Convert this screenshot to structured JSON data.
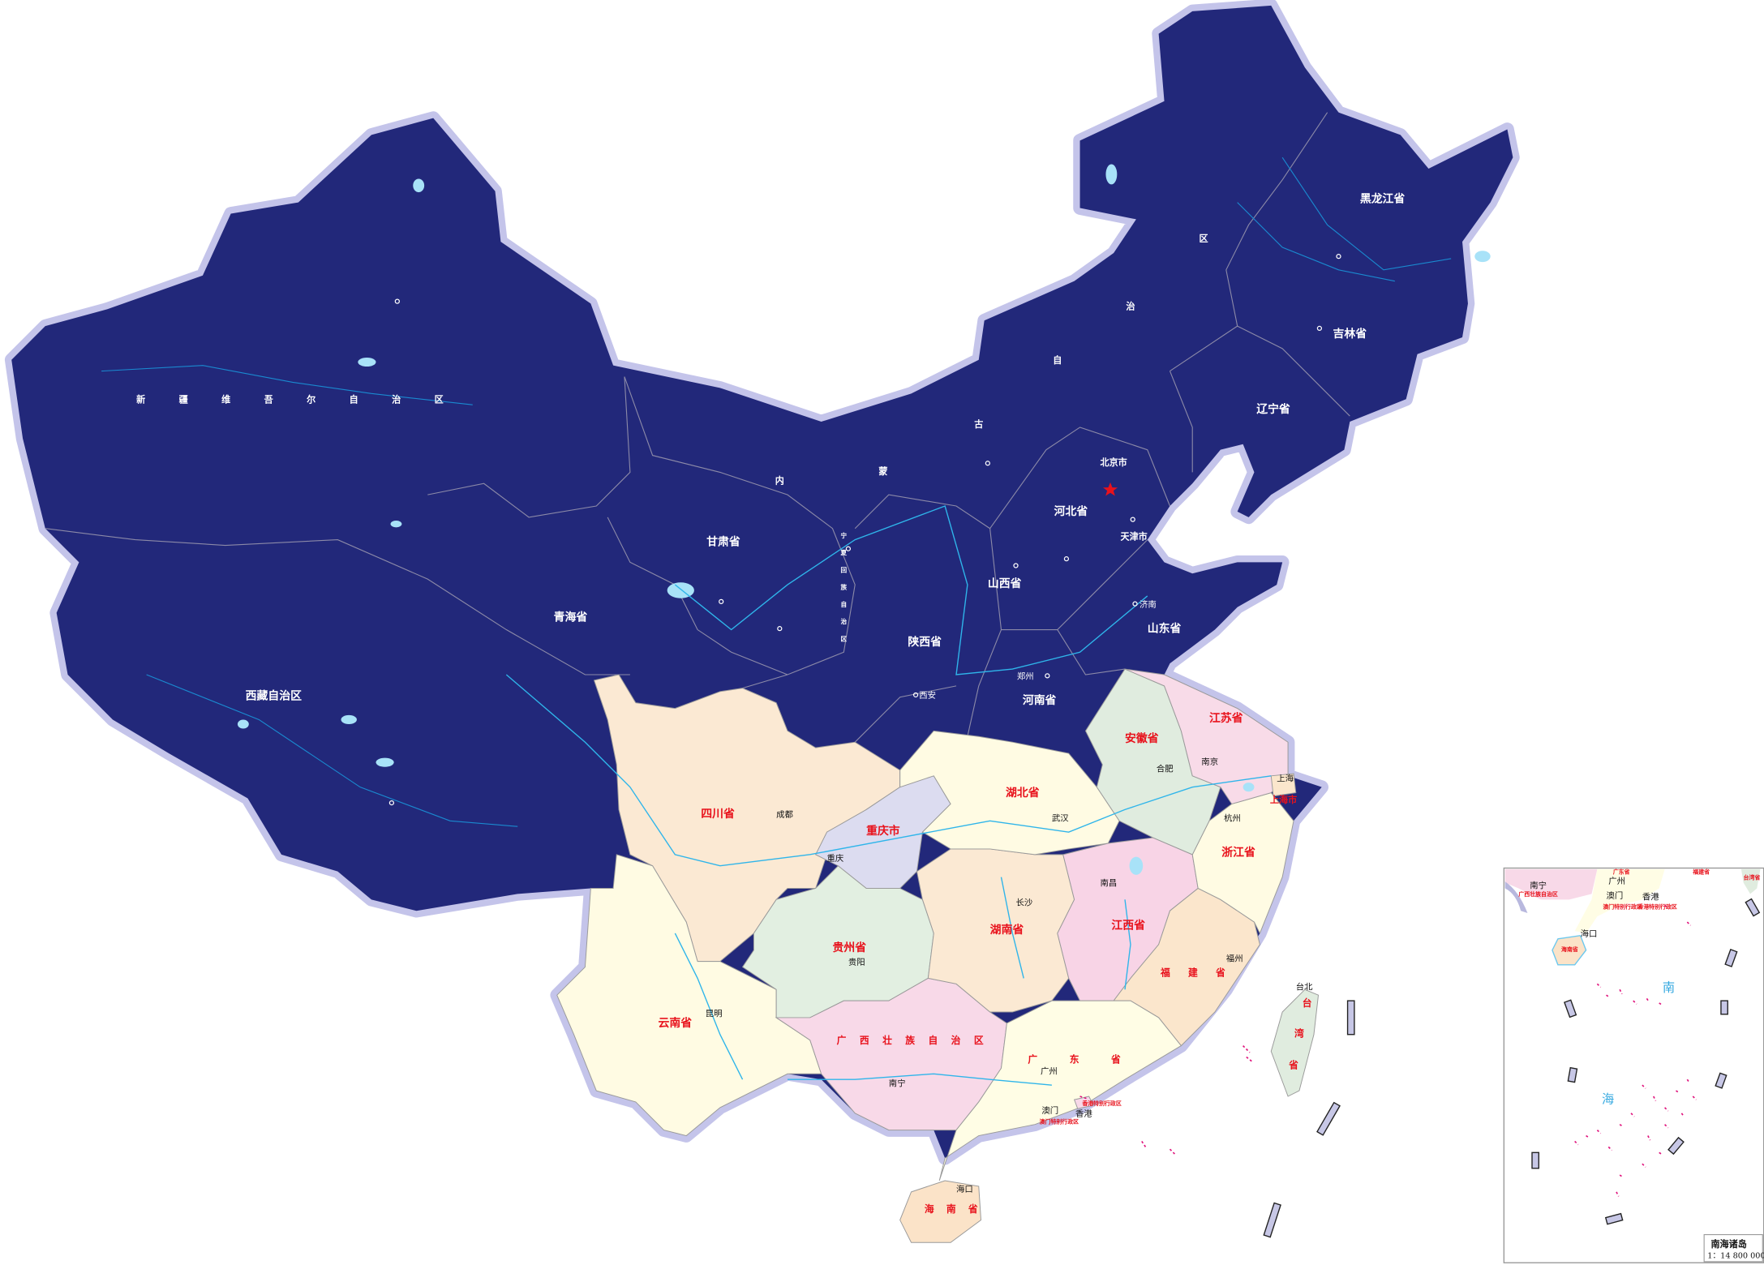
{
  "colors": {
    "north_region": "#22287a",
    "border_halo": "#c4c4ea",
    "label_red": "#e8121c",
    "sea_label": "#35a9e0",
    "river": "#2fb5ea",
    "island_marks": "#e0137c",
    "capital_star": "#e8121c"
  },
  "provinces": {
    "xinjiang": "新疆维吾尔自治区",
    "xizang": "西藏自治区",
    "qinghai": "青海省",
    "gansu": "甘肃省",
    "neimenggu": "内蒙古自治区",
    "ningxia": "宁夏回族自治区",
    "shaanxi": "陕西省",
    "shanxi": "山西省",
    "henan": "河南省",
    "hebei": "河北省",
    "beijing": "北京市",
    "tianjin": "天津市",
    "shandong": "山东省",
    "liaoning": "辽宁省",
    "jilin": "吉林省",
    "heilongjiang": "黑龙江省",
    "sichuan": "四川省",
    "chongqing": "重庆市",
    "hubei": "湖北省",
    "hunan": "湖南省",
    "guizhou": "贵州省",
    "yunnan": "云南省",
    "guangxi": "广西壮族自治区",
    "guangdong": "广东省",
    "jiangxi": "江西省",
    "fujian": "福建省",
    "zhejiang": "浙江省",
    "anhui": "安徽省",
    "jiangsu": "江苏省",
    "shanghai": "上海市",
    "taiwan": "台湾省",
    "hainan": "海南省"
  },
  "cities": {
    "jinan": "济南",
    "zhengzhou": "郑州",
    "xian": "西安",
    "chengdu": "成都",
    "chongqing": "重庆",
    "wuhan": "武汉",
    "changsha": "长沙",
    "guiyang": "贵阳",
    "kunming": "昆明",
    "nanning": "南宁",
    "guangzhou": "广州",
    "nanchang": "南昌",
    "fuzhou": "福州",
    "hangzhou": "杭州",
    "hefei": "合肥",
    "nanjing": "南京",
    "shanghai": "上海",
    "taibei": "台北",
    "haikou": "海口",
    "aomen": "澳门",
    "xianggang": "香港"
  },
  "sar": {
    "aomen": "澳门特别行政区",
    "xianggang": "香港特别行政区"
  },
  "inset": {
    "title": "南海诸岛",
    "scale": "1：14 800 000",
    "sea_char_1": "南",
    "sea_char_2": "海",
    "nanning": "南宁",
    "guangxi": "广西壮族自治区",
    "guangzhou": "广州",
    "guangdong": "广东省",
    "aomen": "澳门",
    "xianggang": "香港",
    "aomen_sar": "澳门特别行政区",
    "xianggang_sar": "香港特别行政区",
    "haikou": "海口",
    "hainan": "海南省",
    "fujian": "福建省",
    "taiwan": "台湾省"
  }
}
